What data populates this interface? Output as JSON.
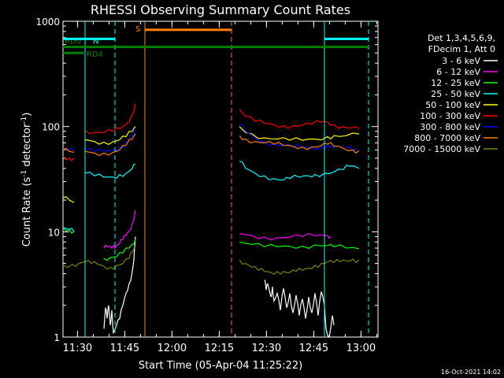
{
  "chart_data": {
    "type": "line",
    "title": "RHESSI Observing Summary Count Rates",
    "xlabel": "Start Time (05-Apr-04 11:25:22)",
    "ylabel": "Count Rate (s",
    "ylabel_sup1": "-1",
    "ylabel_mid": " detector",
    "ylabel_sup2": "-1",
    "ylabel_end": ")",
    "xlim": [
      0,
      100
    ],
    "x_unit": "minutes after 11:25:22",
    "ylim": [
      1,
      1000
    ],
    "yscale": "log",
    "x_ticks": [
      {
        "label": "11:30",
        "x": 4.6
      },
      {
        "label": "11:45",
        "x": 19.6
      },
      {
        "label": "12:00",
        "x": 34.6
      },
      {
        "label": "12:15",
        "x": 49.6
      },
      {
        "label": "12:30",
        "x": 64.6
      },
      {
        "label": "12:45",
        "x": 79.6
      },
      {
        "label": "13:00",
        "x": 94.6
      }
    ],
    "y_ticks": [
      {
        "label": "1",
        "y": 1
      },
      {
        "label": "10",
        "y": 10
      },
      {
        "label": "100",
        "y": 100
      },
      {
        "label": "1000",
        "y": 1000
      }
    ],
    "legend_header": [
      "Det 1,3,4,5,6,9,",
      "FDecim 1, Att 0"
    ],
    "legend_position": "right",
    "series": [
      {
        "name": "3 - 6 keV",
        "color": "#ffffff",
        "segments": [
          [
            [
              13,
              1.2
            ],
            [
              13.5,
              1.9
            ],
            [
              14,
              1.5
            ],
            [
              14.5,
              2.0
            ],
            [
              15,
              1.3
            ],
            [
              15.5,
              1.8
            ],
            [
              16,
              1.1
            ],
            [
              17,
              1.3
            ],
            [
              18,
              1.5
            ],
            [
              19,
              2.0
            ],
            [
              20,
              2.6
            ],
            [
              21,
              3.2
            ],
            [
              22,
              4.2
            ],
            [
              22.5,
              5.5
            ],
            [
              23,
              9.0
            ]
          ],
          [
            [
              64,
              3.5
            ],
            [
              64.5,
              2.8
            ],
            [
              65,
              3.2
            ],
            [
              66,
              2.4
            ],
            [
              66.5,
              3.0
            ],
            [
              67,
              2.2
            ],
            [
              68,
              2.6
            ],
            [
              69,
              1.8
            ],
            [
              70,
              2.9
            ],
            [
              71,
              1.9
            ],
            [
              72,
              2.6
            ],
            [
              73,
              1.7
            ],
            [
              74,
              2.5
            ],
            [
              75,
              1.6
            ],
            [
              76,
              2.3
            ],
            [
              77,
              1.5
            ],
            [
              78,
              2.4
            ],
            [
              79,
              1.7
            ],
            [
              80,
              2.6
            ],
            [
              81,
              1.6
            ],
            [
              82,
              2.7
            ],
            [
              83,
              2.0
            ],
            [
              83.5,
              1.2
            ],
            [
              84.5,
              1.0
            ],
            [
              85.5,
              1.6
            ],
            [
              86,
              1.3
            ]
          ]
        ]
      },
      {
        "name": "6 - 12 keV",
        "color": "#ff00ff",
        "segments": [
          [
            [
              13,
              7.0
            ],
            [
              14,
              7.2
            ],
            [
              15,
              7.3
            ],
            [
              16,
              7.4
            ],
            [
              17,
              7.4
            ],
            [
              18,
              7.8
            ],
            [
              19,
              8.4
            ],
            [
              20,
              9.2
            ],
            [
              21,
              10.2
            ],
            [
              22,
              12
            ],
            [
              23,
              16
            ]
          ],
          [
            [
              56,
              9.6
            ],
            [
              60,
              9.2
            ],
            [
              64,
              8.9
            ],
            [
              68,
              8.8
            ],
            [
              72,
              8.9
            ],
            [
              76,
              9.0
            ],
            [
              80,
              9.2
            ],
            [
              84,
              9.2
            ],
            [
              85,
              9.0
            ]
          ]
        ]
      },
      {
        "name": "12 - 25 keV",
        "color": "#00ff00",
        "segments": [
          [
            [
              0,
              11
            ],
            [
              2,
              10.5
            ],
            [
              3.5,
              10
            ]
          ],
          [
            [
              13,
              5.6
            ],
            [
              15,
              5.7
            ],
            [
              17,
              5.8
            ],
            [
              19,
              6.3
            ],
            [
              21,
              7.0
            ],
            [
              22,
              7.6
            ],
            [
              23,
              8.5
            ]
          ],
          [
            [
              56,
              8.0
            ],
            [
              60,
              7.6
            ],
            [
              64,
              7.2
            ],
            [
              68,
              7.2
            ],
            [
              72,
              7.3
            ],
            [
              76,
              7.3
            ],
            [
              80,
              7.5
            ],
            [
              84,
              7.4
            ],
            [
              86,
              7.2
            ],
            [
              90,
              7.0
            ],
            [
              94,
              6.9
            ]
          ]
        ]
      },
      {
        "name": "25 - 50 keV",
        "color": "#00ffff",
        "segments": [
          [
            [
              0,
              11
            ],
            [
              2,
              10.5
            ],
            [
              3.5,
              10
            ]
          ],
          [
            [
              7,
              36
            ],
            [
              10,
              34
            ],
            [
              13,
              33
            ],
            [
              16,
              33
            ],
            [
              18,
              35
            ],
            [
              20,
              36
            ],
            [
              22,
              40
            ],
            [
              23,
              44
            ]
          ],
          [
            [
              56,
              47
            ],
            [
              58,
              40
            ],
            [
              61,
              36
            ],
            [
              64,
              34
            ],
            [
              67,
              32
            ],
            [
              70,
              31
            ],
            [
              72,
              32
            ],
            [
              75,
              33
            ],
            [
              78,
              34
            ],
            [
              80,
              35
            ],
            [
              83,
              36
            ],
            [
              86,
              37
            ],
            [
              89,
              39
            ],
            [
              91,
              42
            ],
            [
              94,
              40
            ]
          ]
        ]
      },
      {
        "name": "50 - 100 keV",
        "color": "#ffff00",
        "segments": [
          [
            [
              0,
              21
            ],
            [
              2,
              20
            ],
            [
              3.5,
              19
            ]
          ],
          [
            [
              7,
              75
            ],
            [
              10,
              72
            ],
            [
              13,
              71
            ],
            [
              16,
              72
            ],
            [
              18,
              75
            ],
            [
              20,
              80
            ],
            [
              22,
              90
            ],
            [
              23,
              100
            ]
          ],
          [
            [
              56,
              100
            ],
            [
              60,
              85
            ],
            [
              64,
              78
            ],
            [
              68,
              76
            ],
            [
              72,
              74
            ],
            [
              76,
              74
            ],
            [
              80,
              76
            ],
            [
              84,
              80
            ],
            [
              86,
              82
            ],
            [
              90,
              82
            ],
            [
              94,
              85
            ]
          ]
        ]
      },
      {
        "name": "100 - 300 keV",
        "color": "#ff0000",
        "segments": [
          [
            [
              0,
              52
            ],
            [
              2,
              50
            ],
            [
              3.5,
              50
            ]
          ],
          [
            [
              7,
              92
            ],
            [
              10,
              88
            ],
            [
              13,
              88
            ],
            [
              16,
              90
            ],
            [
              18,
              95
            ],
            [
              20,
              105
            ],
            [
              22,
              130
            ],
            [
              23,
              165
            ]
          ],
          [
            [
              56,
              145
            ],
            [
              58,
              125
            ],
            [
              61,
              112
            ],
            [
              64,
              107
            ],
            [
              67,
              104
            ],
            [
              70,
              102
            ],
            [
              73,
              102
            ],
            [
              76,
              103
            ],
            [
              79,
              105
            ],
            [
              82,
              110
            ],
            [
              84,
              110
            ],
            [
              86,
              104
            ],
            [
              89,
              100
            ],
            [
              92,
              98
            ],
            [
              94,
              95
            ]
          ]
        ]
      },
      {
        "name": "300 - 800 keV",
        "color": "#0000ff",
        "segments": [
          [
            [
              0,
              61
            ],
            [
              2,
              60
            ],
            [
              3.5,
              59
            ]
          ],
          [
            [
              7,
              60
            ],
            [
              10,
              58
            ],
            [
              13,
              58
            ],
            [
              16,
              60
            ],
            [
              18,
              64
            ],
            [
              20,
              70
            ],
            [
              22,
              82
            ],
            [
              23,
              95
            ]
          ],
          [
            [
              56,
              105
            ],
            [
              58,
              90
            ],
            [
              61,
              78
            ],
            [
              64,
              72
            ],
            [
              67,
              68
            ],
            [
              70,
              66
            ],
            [
              73,
              64
            ],
            [
              76,
              63
            ],
            [
              79,
              62
            ],
            [
              82,
              64
            ],
            [
              84,
              66
            ],
            [
              86,
              64
            ],
            [
              89,
              62
            ],
            [
              92,
              60
            ],
            [
              94,
              58
            ]
          ]
        ]
      },
      {
        "name": "800 - 7000 keV",
        "color": "#ff8000",
        "segments": [
          [
            [
              0,
              60
            ],
            [
              2,
              58
            ],
            [
              3.5,
              57
            ]
          ],
          [
            [
              7,
              58
            ],
            [
              10,
              56
            ],
            [
              13,
              56
            ],
            [
              16,
              57
            ],
            [
              18,
              60
            ],
            [
              20,
              66
            ],
            [
              22,
              76
            ],
            [
              23,
              85
            ]
          ],
          [
            [
              56,
              82
            ],
            [
              58,
              76
            ],
            [
              61,
              72
            ],
            [
              64,
              70
            ],
            [
              67,
              68
            ],
            [
              70,
              66
            ],
            [
              73,
              65
            ],
            [
              76,
              64
            ],
            [
              79,
              64
            ],
            [
              82,
              66
            ],
            [
              84,
              68
            ],
            [
              86,
              65
            ],
            [
              89,
              62
            ],
            [
              92,
              60
            ],
            [
              94,
              59
            ]
          ]
        ]
      },
      {
        "name": "7000 - 15000 keV",
        "color": "#808000",
        "segments": [
          [
            [
              0,
              4.8
            ],
            [
              3,
              4.9
            ],
            [
              5,
              5.0
            ],
            [
              7,
              5.2
            ],
            [
              9,
              5.0
            ],
            [
              11,
              4.9
            ],
            [
              13,
              4.7
            ],
            [
              15,
              4.6
            ],
            [
              17,
              4.8
            ],
            [
              19,
              5.0
            ],
            [
              21,
              5.6
            ],
            [
              22,
              6.4
            ],
            [
              23,
              7.2
            ]
          ],
          [
            [
              56,
              5.4
            ],
            [
              58,
              5.0
            ],
            [
              60,
              4.6
            ],
            [
              62,
              4.3
            ],
            [
              64,
              4.2
            ],
            [
              66,
              4.1
            ],
            [
              68,
              4.2
            ],
            [
              70,
              4.2
            ],
            [
              72,
              4.1
            ],
            [
              74,
              4.2
            ],
            [
              76,
              4.3
            ],
            [
              78,
              4.5
            ],
            [
              80,
              4.8
            ],
            [
              82,
              5.0
            ],
            [
              84,
              5.2
            ],
            [
              86,
              5.1
            ],
            [
              88,
              5.2
            ],
            [
              90,
              5.3
            ],
            [
              92,
              5.5
            ],
            [
              94,
              5.4
            ]
          ]
        ]
      }
    ],
    "state_bars": [
      {
        "label": "RD0",
        "color": "#008000",
        "x0": 0,
        "x1": 97,
        "y": 570
      },
      {
        "label": "RD4",
        "color": "#008000",
        "x0": 0,
        "x1": 6.5,
        "y": 500
      },
      {
        "label": "N",
        "color": "#00ffff",
        "x0": 0,
        "x1": 16.5,
        "y": 680
      },
      {
        "label": "",
        "color": "#00ffff",
        "x0": 83,
        "x1": 97,
        "y": 680
      },
      {
        "label": "S",
        "color": "#ff8000",
        "x0": 26,
        "x1": 53.5,
        "y": 830
      }
    ],
    "vertical_lines": [
      {
        "x": 7,
        "color": "#00ffff",
        "style": "solid"
      },
      {
        "x": 16.5,
        "color": "#00ffff",
        "style": "dashed"
      },
      {
        "x": 26,
        "color": "#ff8000",
        "style": "solid"
      },
      {
        "x": 53.5,
        "color": "#ff8000",
        "style": "dashed"
      },
      {
        "x": 83,
        "color": "#00ffff",
        "style": "solid"
      },
      {
        "x": 97,
        "color": "#00ffff",
        "style": "dashed"
      }
    ]
  },
  "footer_timestamp": "16-Oct-2021 14:02"
}
